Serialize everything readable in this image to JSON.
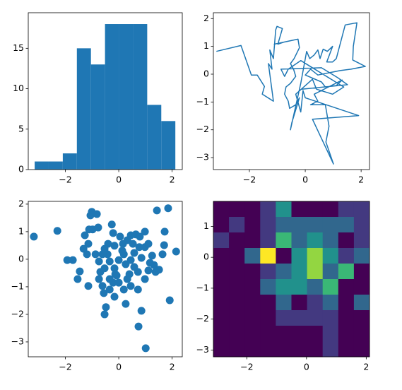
{
  "chart_data": [
    {
      "type": "histogram",
      "color": "#1f77b4",
      "bins": [
        -3.15,
        -2.623,
        -2.096,
        -1.569,
        -1.042,
        -0.515,
        0.012,
        0.539,
        1.066,
        1.593,
        2.12
      ],
      "counts": [
        1,
        1,
        2,
        15,
        13,
        18,
        18,
        18,
        8,
        6
      ],
      "xlim": [
        -3.39,
        2.38
      ],
      "ylim": [
        0,
        19.4
      ],
      "xticks": [
        {
          "value": -2,
          "label": "−2"
        },
        0,
        2
      ],
      "yticks": [
        0,
        5,
        10,
        15
      ]
    },
    {
      "type": "line",
      "color": "#1f77b4",
      "x": [
        -3.18,
        -2.3,
        -1.93,
        -1.72,
        -1.46,
        -1.54,
        -1.14,
        -1.32,
        -1.19,
        -1.27,
        -1.14,
        -1.06,
        -1.01,
        -0.82,
        -0.98,
        -0.77,
        -1.11,
        -0.26,
        -0.21,
        -0.4,
        -0.53,
        -0.42,
        -0.34,
        -0.53,
        -0.69,
        -0.74,
        -0.61,
        -0.56,
        -0.34,
        -0.21,
        -0.48,
        -0.53,
        -0.16,
        0.05,
        0.16,
        0.32,
        0.45,
        0.53,
        0.64,
        0.79,
        0.98,
        0.77,
        0.98,
        1.11,
        1.43,
        1.85,
        1.72,
        1.7,
        2.15,
        1.64,
        1.25,
        0.85,
        0.45,
        0.19,
        0.0,
        0.58,
        0.72,
        1.11,
        1.32,
        0.32,
        0.45,
        0.19,
        0.72,
        0.85,
        0.74,
        1.01,
        0.26,
        1.91,
        0.0,
        -0.08,
        -0.16,
        -0.34,
        0.26,
        0.4,
        0.98,
        1.38,
        0.13,
        -0.16,
        -0.61,
        -0.74,
        -0.87,
        0.58,
        1.17,
        1.51,
        -0.13
      ],
      "y": [
        0.82,
        1.03,
        -0.03,
        -0.03,
        -0.44,
        -0.72,
        -0.97,
        0.38,
        0.18,
        0.87,
        0.56,
        1.59,
        1.72,
        1.64,
        1.08,
        1.15,
        1.08,
        1.26,
        0.95,
        0.56,
        0.38,
        0.18,
        -0.08,
        -0.33,
        -0.46,
        -0.72,
        -0.97,
        -1.23,
        -1.1,
        -0.85,
        -1.74,
        -2.0,
        -0.33,
        0.82,
        0.56,
        0.69,
        0.87,
        0.56,
        0.9,
        0.82,
        1.0,
        0.44,
        0.44,
        0.56,
        1.77,
        1.85,
        1.0,
        0.51,
        0.28,
        0.18,
        0.13,
        0.05,
        -0.03,
        0.18,
        -0.03,
        -0.28,
        -0.46,
        -0.41,
        -0.21,
        -0.72,
        -0.97,
        -1.1,
        -1.1,
        -1.87,
        -2.44,
        -3.23,
        -1.62,
        -1.49,
        -0.85,
        -0.59,
        -1.36,
        -0.72,
        -0.18,
        -0.54,
        -0.72,
        -0.46,
        0.31,
        0.49,
        0.18,
        -0.08,
        0.18,
        0.23,
        -0.13,
        -0.38,
        -0.54
      ],
      "xlim": [
        -3.29,
        2.3
      ],
      "ylim": [
        -3.43,
        2.21
      ],
      "xticks": [
        {
          "value": -2,
          "label": "−2"
        },
        0,
        2
      ],
      "yticks": [
        {
          "value": -3,
          "label": "−3"
        },
        {
          "value": -2,
          "label": "−2"
        },
        {
          "value": -1,
          "label": "−1"
        },
        0,
        1,
        2
      ]
    },
    {
      "type": "scatter",
      "color": "#1f77b4",
      "x": [
        -3.18,
        -2.3,
        -1.93,
        -1.72,
        -1.46,
        -1.54,
        -1.14,
        -1.32,
        -1.19,
        -1.27,
        -1.14,
        -1.06,
        -1.01,
        -0.82,
        -0.98,
        -0.77,
        -1.11,
        -0.26,
        -0.21,
        -0.4,
        -0.53,
        -0.42,
        -0.34,
        -0.53,
        -0.69,
        -0.74,
        -0.61,
        -0.56,
        -0.34,
        -0.21,
        -0.48,
        -0.53,
        -0.16,
        0.05,
        0.16,
        0.32,
        0.45,
        0.53,
        0.64,
        0.79,
        0.98,
        0.77,
        0.98,
        1.11,
        1.43,
        1.85,
        1.72,
        1.7,
        2.15,
        1.64,
        1.25,
        0.85,
        0.45,
        0.19,
        0.0,
        0.58,
        0.72,
        1.11,
        1.32,
        0.32,
        0.45,
        0.19,
        0.72,
        0.85,
        0.74,
        1.01,
        0.26,
        1.91,
        0.0,
        -0.08,
        -0.16,
        -0.34,
        0.26,
        0.4,
        0.98,
        1.38,
        0.13,
        -0.16,
        -0.61,
        -0.74,
        -0.87,
        0.58,
        1.17,
        1.51,
        -0.13
      ],
      "y": [
        0.82,
        1.03,
        -0.03,
        -0.03,
        -0.44,
        -0.72,
        -0.97,
        0.38,
        0.18,
        0.87,
        0.56,
        1.59,
        1.72,
        1.64,
        1.08,
        1.15,
        1.08,
        1.26,
        0.95,
        0.56,
        0.38,
        0.18,
        -0.08,
        -0.33,
        -0.46,
        -0.72,
        -0.97,
        -1.23,
        -1.1,
        -0.85,
        -1.74,
        -2.0,
        -0.33,
        0.82,
        0.56,
        0.69,
        0.87,
        0.56,
        0.9,
        0.82,
        1.0,
        0.44,
        0.44,
        0.56,
        1.77,
        1.85,
        1.0,
        0.51,
        0.28,
        0.18,
        0.13,
        0.05,
        -0.03,
        0.18,
        -0.03,
        -0.28,
        -0.46,
        -0.41,
        -0.21,
        -0.72,
        -0.97,
        -1.1,
        -1.1,
        -1.87,
        -2.44,
        -3.23,
        -1.62,
        -1.49,
        -0.85,
        -0.59,
        -1.36,
        -0.72,
        -0.18,
        -0.54,
        -0.72,
        -0.46,
        0.31,
        0.49,
        0.18,
        -0.08,
        0.18,
        0.23,
        -0.13,
        -0.38,
        -0.54
      ],
      "xlim": [
        -3.39,
        2.38
      ],
      "ylim": [
        -3.54,
        2.1
      ],
      "xticks": [
        {
          "value": -2,
          "label": "−2"
        },
        0,
        2
      ],
      "yticks": [
        {
          "value": -3,
          "label": "−3"
        },
        {
          "value": -2,
          "label": "−2"
        },
        {
          "value": -1,
          "label": "−1"
        },
        0,
        1,
        2
      ]
    },
    {
      "type": "hist2d",
      "cmap": "viridis",
      "counts": [
        [
          0,
          0,
          0,
          1,
          3,
          0,
          0,
          0,
          1,
          1
        ],
        [
          0,
          1,
          0,
          1,
          2,
          2,
          2,
          2,
          2,
          1
        ],
        [
          1,
          0,
          0,
          1,
          4,
          2,
          3,
          2,
          0,
          1
        ],
        [
          0,
          0,
          2,
          6,
          0,
          3,
          5,
          3,
          1,
          2
        ],
        [
          0,
          0,
          0,
          1,
          2,
          3,
          5,
          2,
          4,
          0
        ],
        [
          0,
          0,
          0,
          2,
          3,
          3,
          2,
          4,
          0,
          0
        ],
        [
          0,
          0,
          0,
          0,
          2,
          0,
          1,
          2,
          0,
          2
        ],
        [
          0,
          0,
          0,
          0,
          1,
          1,
          1,
          1,
          0,
          0
        ],
        [
          0,
          0,
          0,
          0,
          0,
          0,
          0,
          1,
          0,
          0
        ],
        [
          0,
          0,
          0,
          0,
          0,
          0,
          0,
          1,
          0,
          0
        ]
      ],
      "xlim": [
        -3.12,
        2.11
      ],
      "ylim": [
        -3.22,
        1.81
      ],
      "xticks": [
        {
          "value": -2,
          "label": "−2"
        },
        0,
        2
      ],
      "yticks": [
        {
          "value": -3,
          "label": "−3"
        },
        {
          "value": -2,
          "label": "−2"
        },
        {
          "value": -1,
          "label": "−1"
        },
        0,
        1
      ]
    }
  ]
}
